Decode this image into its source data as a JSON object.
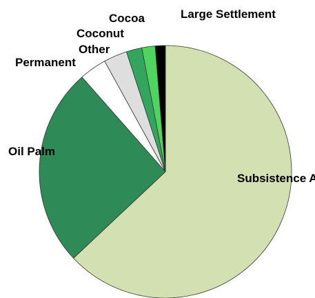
{
  "chart_data": {
    "type": "pie",
    "title": "",
    "slices": [
      {
        "label": "Subsistence Agriculture",
        "value": 63.0,
        "color": "#d3e0b1"
      },
      {
        "label": "Oil Palm",
        "value": 25.5,
        "color": "#2e8b57"
      },
      {
        "label": "Permanent",
        "value": 3.5,
        "color": "#ffffff"
      },
      {
        "label": "Other",
        "value": 3.0,
        "color": "#dedede"
      },
      {
        "label": "Coconut",
        "value": 2.0,
        "color": "#33a55e"
      },
      {
        "label": "Cocoa",
        "value": 1.7,
        "color": "#4fd45f"
      },
      {
        "label": "Large Settlement",
        "value": 1.3,
        "color": "#000000"
      }
    ]
  }
}
